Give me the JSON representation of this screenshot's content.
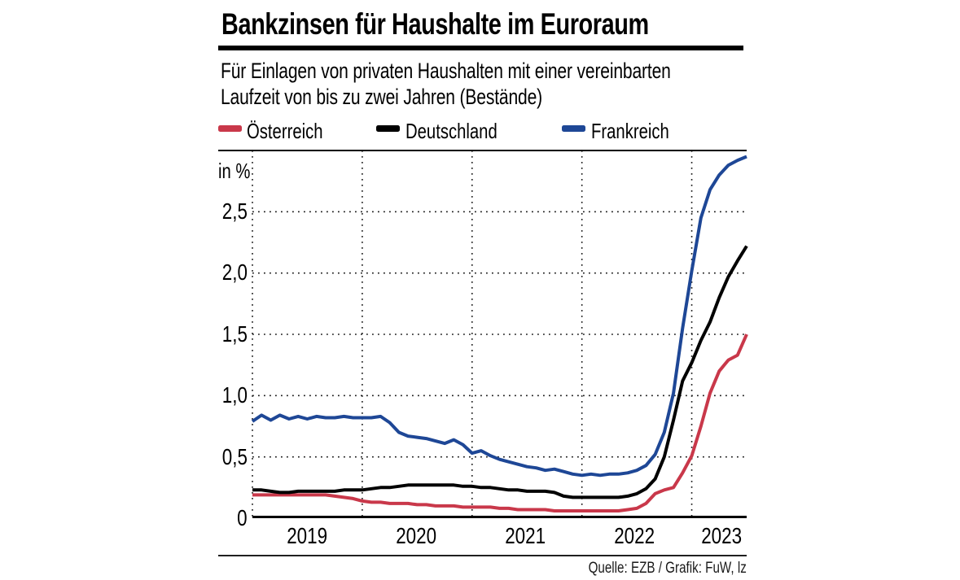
{
  "header": {
    "title": "Bankzinsen für Haushalte im Euroraum",
    "subtitle_lines": [
      "Für Einlagen von privaten Haushalten mit einer vereinbarten",
      "Laufzeit von bis zu zwei Jahren (Bestände)"
    ]
  },
  "source": "Quelle: EZB / Grafik: FuW, lz",
  "chart_data": {
    "type": "line",
    "x_unit": "monthly",
    "x_start": "2019-01",
    "x_end": "2023-07",
    "categories": [
      "2019",
      "2020",
      "2021",
      "2022",
      "2023"
    ],
    "months_per_year": 12,
    "ylabel_unit": "in %",
    "ylim": [
      0,
      3.0
    ],
    "yticks": [
      0,
      0.5,
      1.0,
      1.5,
      2.0,
      2.5
    ],
    "ytick_labels": [
      "0",
      "0,5",
      "1,0",
      "1,5",
      "2,0",
      "2,5"
    ],
    "grid": "dotted",
    "legend_position": "top",
    "series": [
      {
        "id": "oesterreich",
        "name": "Österreich",
        "color": "#c9384a",
        "values": [
          0.19,
          0.19,
          0.19,
          0.19,
          0.19,
          0.19,
          0.19,
          0.19,
          0.19,
          0.18,
          0.17,
          0.16,
          0.14,
          0.13,
          0.13,
          0.12,
          0.12,
          0.12,
          0.11,
          0.11,
          0.1,
          0.1,
          0.1,
          0.09,
          0.09,
          0.09,
          0.09,
          0.08,
          0.08,
          0.07,
          0.07,
          0.07,
          0.07,
          0.06,
          0.06,
          0.06,
          0.06,
          0.06,
          0.06,
          0.06,
          0.06,
          0.07,
          0.08,
          0.12,
          0.2,
          0.23,
          0.25,
          0.37,
          0.51,
          0.75,
          1.02,
          1.2,
          1.29,
          1.33,
          1.5
        ]
      },
      {
        "id": "deutschland",
        "name": "Deutschland",
        "color": "#000000",
        "values": [
          0.23,
          0.23,
          0.22,
          0.21,
          0.21,
          0.22,
          0.22,
          0.22,
          0.22,
          0.22,
          0.23,
          0.23,
          0.23,
          0.24,
          0.25,
          0.25,
          0.26,
          0.27,
          0.27,
          0.27,
          0.27,
          0.27,
          0.27,
          0.26,
          0.26,
          0.25,
          0.25,
          0.24,
          0.23,
          0.23,
          0.22,
          0.22,
          0.22,
          0.21,
          0.18,
          0.17,
          0.17,
          0.17,
          0.17,
          0.17,
          0.17,
          0.18,
          0.2,
          0.24,
          0.32,
          0.5,
          0.8,
          1.12,
          1.27,
          1.45,
          1.6,
          1.8,
          1.97,
          2.1,
          2.22
        ]
      },
      {
        "id": "frankreich",
        "name": "Frankreich",
        "color": "#1e4796",
        "values": [
          0.79,
          0.84,
          0.8,
          0.84,
          0.81,
          0.83,
          0.81,
          0.83,
          0.82,
          0.82,
          0.83,
          0.82,
          0.82,
          0.82,
          0.83,
          0.78,
          0.7,
          0.67,
          0.66,
          0.65,
          0.63,
          0.61,
          0.64,
          0.6,
          0.53,
          0.55,
          0.51,
          0.48,
          0.46,
          0.44,
          0.42,
          0.41,
          0.39,
          0.4,
          0.38,
          0.36,
          0.35,
          0.36,
          0.35,
          0.36,
          0.36,
          0.37,
          0.39,
          0.43,
          0.52,
          0.7,
          1.02,
          1.55,
          2.02,
          2.45,
          2.68,
          2.8,
          2.88,
          2.92,
          2.95
        ]
      }
    ]
  }
}
